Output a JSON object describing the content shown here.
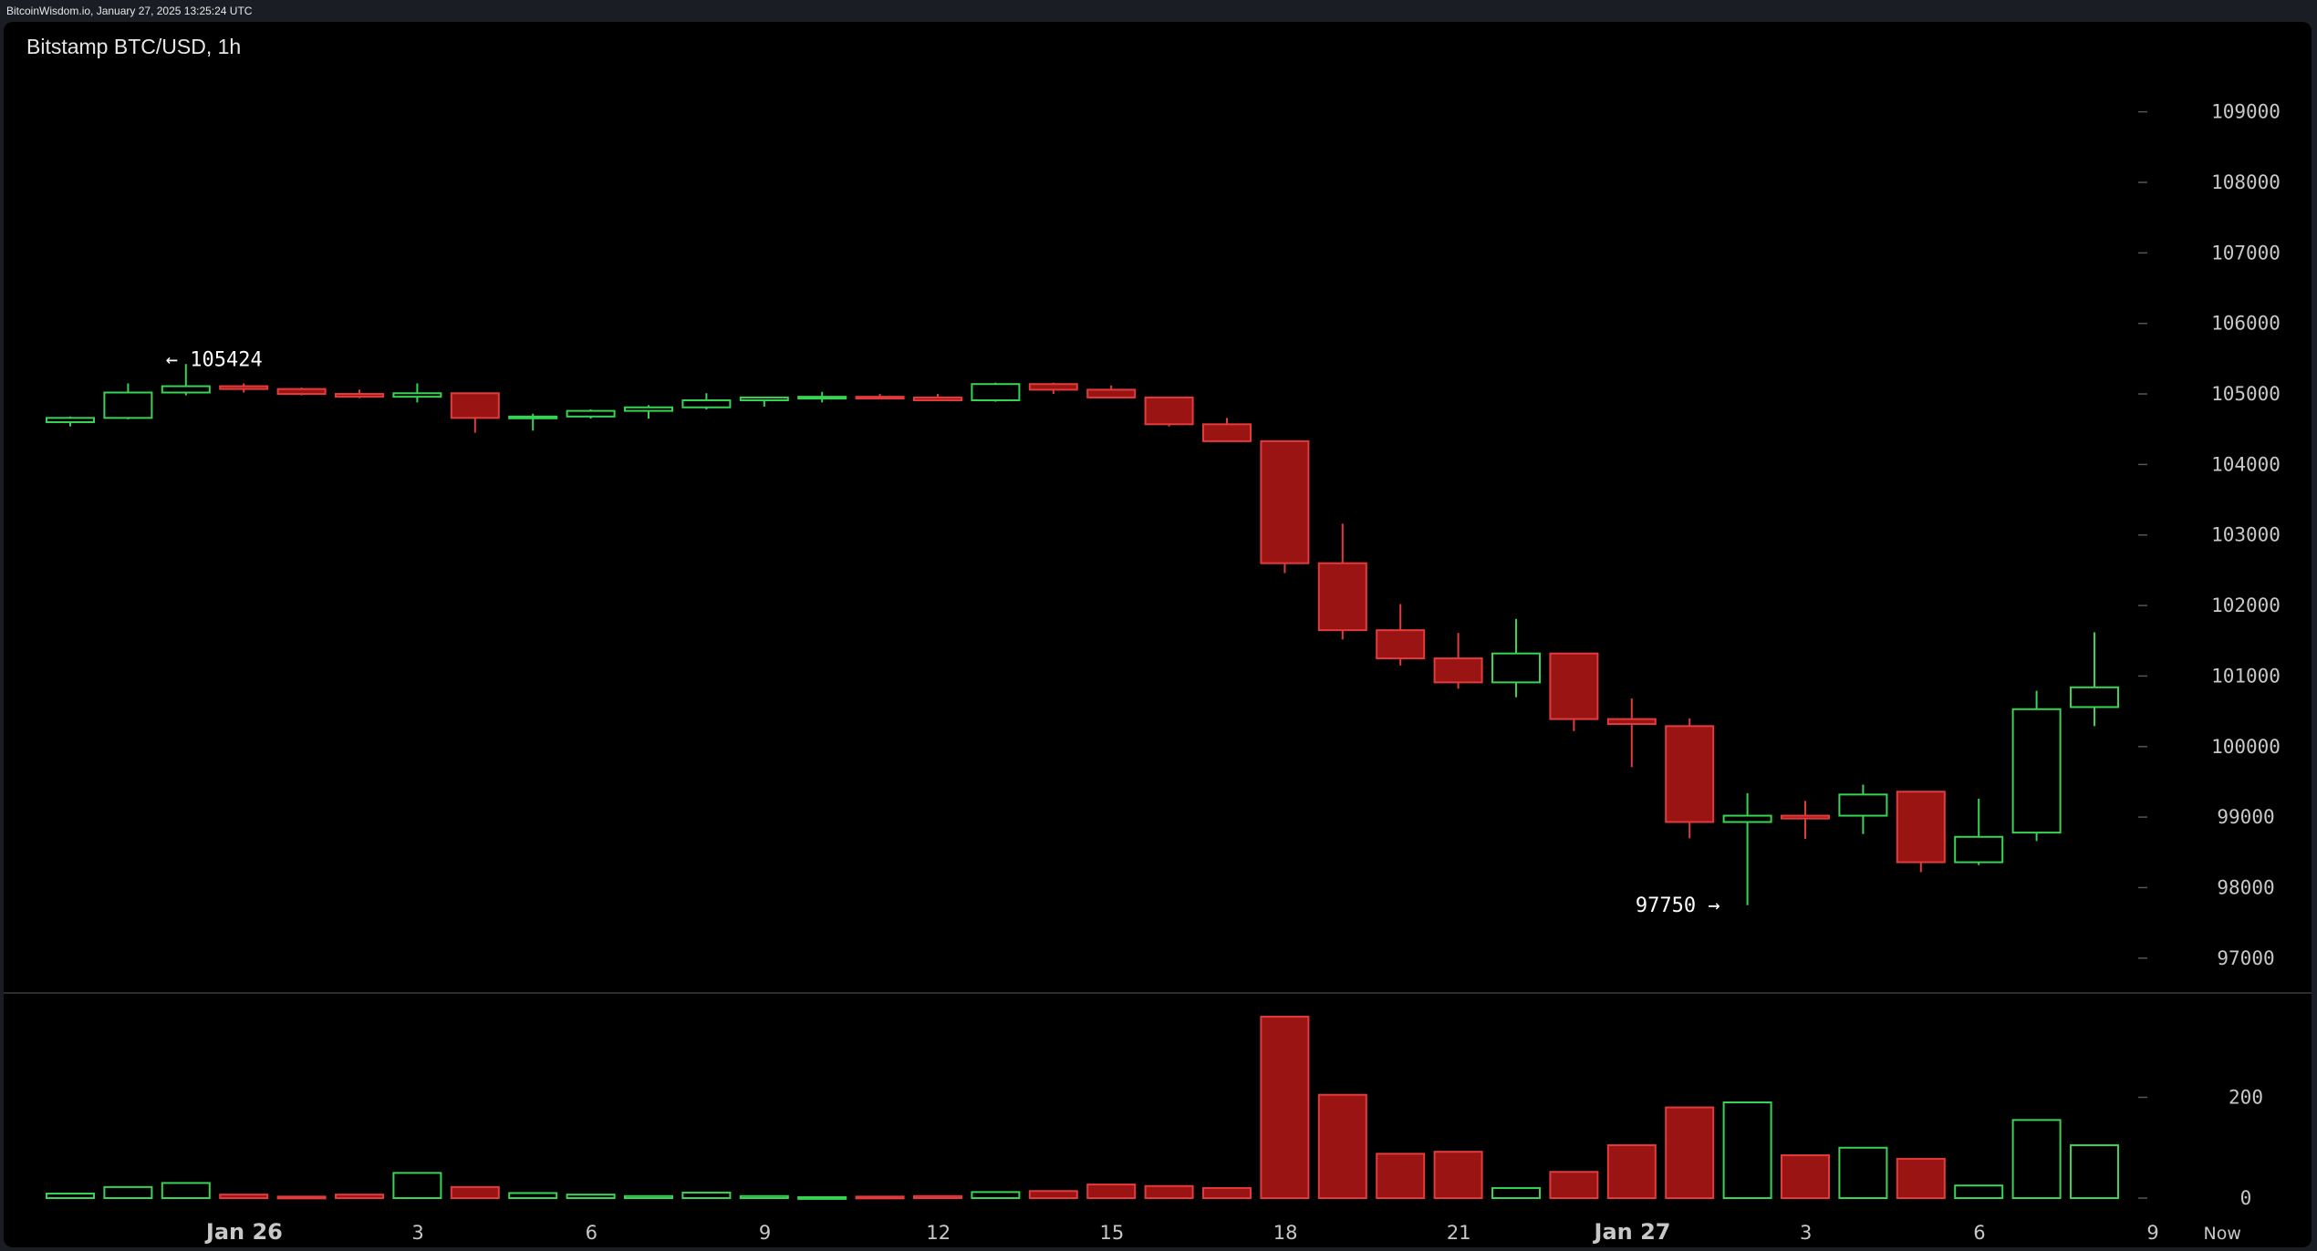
{
  "header": {
    "text": "BitcoinWisdom.io, January 27, 2025 13:25:24 UTC"
  },
  "chart_data": {
    "type": "candlestick",
    "title": "Bitstamp BTC/USD, 1h",
    "price_axis": {
      "ticks": [
        109000,
        108000,
        107000,
        106000,
        105000,
        104000,
        103000,
        102000,
        101000,
        100000,
        99000,
        98000,
        97000
      ],
      "range": [
        96700,
        109500
      ]
    },
    "volume_axis": {
      "ticks": [
        0,
        200
      ],
      "range": [
        0,
        380
      ]
    },
    "x_labels": [
      {
        "label": "Jan 26",
        "index": 3.5,
        "bold": true
      },
      {
        "label": "3",
        "index": 6.5
      },
      {
        "label": "6",
        "index": 9.5
      },
      {
        "label": "9",
        "index": 12.5
      },
      {
        "label": "12",
        "index": 15.5
      },
      {
        "label": "15",
        "index": 18.5
      },
      {
        "label": "18",
        "index": 21.5
      },
      {
        "label": "21",
        "index": 24.5
      },
      {
        "label": "Jan 27",
        "index": 27.5,
        "bold": true
      },
      {
        "label": "3",
        "index": 30.5
      },
      {
        "label": "6",
        "index": 33.5
      },
      {
        "label": "9",
        "index": 36.5
      },
      {
        "label": "Now",
        "index": 37.7
      }
    ],
    "annotations": [
      {
        "text": "← 105424",
        "index": 2,
        "value": 105424,
        "side": "right"
      },
      {
        "text": "97750 →",
        "index": 29,
        "value": 97750,
        "side": "left"
      }
    ],
    "candles": [
      {
        "o": 104600,
        "h": 104680,
        "l": 104540,
        "c": 104660,
        "v": 9
      },
      {
        "o": 104660,
        "h": 105150,
        "l": 104640,
        "c": 105020,
        "v": 22
      },
      {
        "o": 105020,
        "h": 105424,
        "l": 104980,
        "c": 105110,
        "v": 30
      },
      {
        "o": 105110,
        "h": 105150,
        "l": 105020,
        "c": 105070,
        "v": 7
      },
      {
        "o": 105070,
        "h": 105090,
        "l": 104980,
        "c": 105000,
        "v": 3
      },
      {
        "o": 105000,
        "h": 105060,
        "l": 104940,
        "c": 104960,
        "v": 7
      },
      {
        "o": 104960,
        "h": 105150,
        "l": 104880,
        "c": 105010,
        "v": 50
      },
      {
        "o": 105010,
        "h": 105010,
        "l": 104450,
        "c": 104660,
        "v": 22
      },
      {
        "o": 104660,
        "h": 104720,
        "l": 104480,
        "c": 104680,
        "v": 10
      },
      {
        "o": 104680,
        "h": 104780,
        "l": 104650,
        "c": 104760,
        "v": 7
      },
      {
        "o": 104760,
        "h": 104840,
        "l": 104650,
        "c": 104810,
        "v": 4
      },
      {
        "o": 104810,
        "h": 105010,
        "l": 104780,
        "c": 104910,
        "v": 11
      },
      {
        "o": 104910,
        "h": 104960,
        "l": 104820,
        "c": 104950,
        "v": 4
      },
      {
        "o": 104950,
        "h": 105030,
        "l": 104880,
        "c": 104960,
        "v": 2
      },
      {
        "o": 104960,
        "h": 105000,
        "l": 104930,
        "c": 104950,
        "v": 3
      },
      {
        "o": 104950,
        "h": 105000,
        "l": 104900,
        "c": 104910,
        "v": 4
      },
      {
        "o": 104910,
        "h": 105160,
        "l": 104890,
        "c": 105140,
        "v": 12
      },
      {
        "o": 105140,
        "h": 105160,
        "l": 105000,
        "c": 105060,
        "v": 14
      },
      {
        "o": 105060,
        "h": 105120,
        "l": 104960,
        "c": 104950,
        "v": 27
      },
      {
        "o": 104950,
        "h": 104960,
        "l": 104540,
        "c": 104570,
        "v": 24
      },
      {
        "o": 104570,
        "h": 104660,
        "l": 104340,
        "c": 104330,
        "v": 20
      },
      {
        "o": 104330,
        "h": 104330,
        "l": 102460,
        "c": 102600,
        "v": 360
      },
      {
        "o": 102600,
        "h": 103160,
        "l": 101520,
        "c": 101650,
        "v": 205
      },
      {
        "o": 101650,
        "h": 102020,
        "l": 101150,
        "c": 101250,
        "v": 88
      },
      {
        "o": 101250,
        "h": 101610,
        "l": 100820,
        "c": 100910,
        "v": 92
      },
      {
        "o": 100910,
        "h": 101810,
        "l": 100700,
        "c": 101320,
        "v": 20
      },
      {
        "o": 101320,
        "h": 101320,
        "l": 100220,
        "c": 100390,
        "v": 52
      },
      {
        "o": 100390,
        "h": 100680,
        "l": 99710,
        "c": 100320,
        "v": 105
      },
      {
        "o": 100290,
        "h": 100400,
        "l": 98700,
        "c": 98930,
        "v": 180
      },
      {
        "o": 98930,
        "h": 99340,
        "l": 97750,
        "c": 99020,
        "v": 190
      },
      {
        "o": 99020,
        "h": 99230,
        "l": 98690,
        "c": 98980,
        "v": 85
      },
      {
        "o": 99020,
        "h": 99460,
        "l": 98760,
        "c": 99320,
        "v": 100
      },
      {
        "o": 99360,
        "h": 99360,
        "l": 98220,
        "c": 98360,
        "v": 78
      },
      {
        "o": 98360,
        "h": 99260,
        "l": 98320,
        "c": 98720,
        "v": 25
      },
      {
        "o": 98780,
        "h": 100790,
        "l": 98660,
        "c": 100530,
        "v": 155
      },
      {
        "o": 100560,
        "h": 101620,
        "l": 100290,
        "c": 100840,
        "v": 105
      }
    ]
  }
}
